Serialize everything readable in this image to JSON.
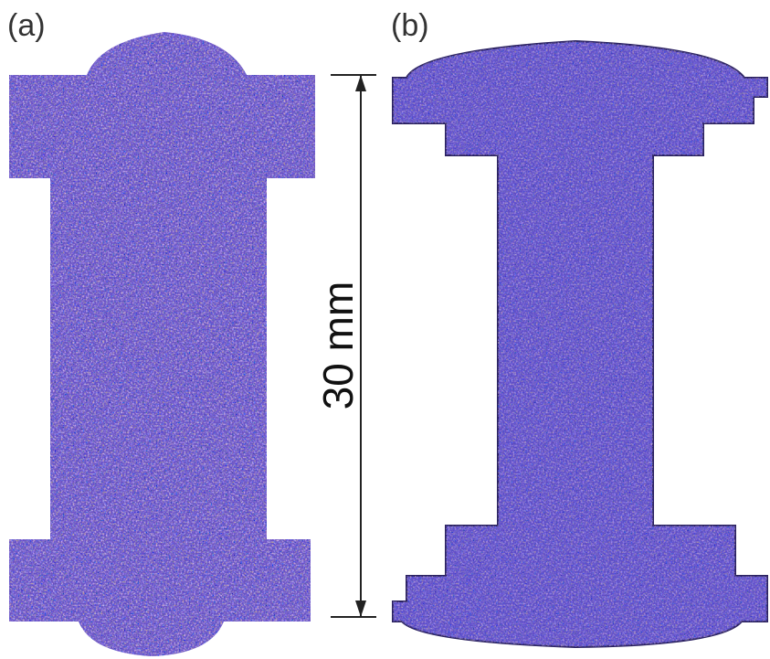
{
  "panels": [
    {
      "label": "(a)"
    },
    {
      "label": "(b)"
    }
  ],
  "scale_bar": {
    "label": "30 mm"
  }
}
